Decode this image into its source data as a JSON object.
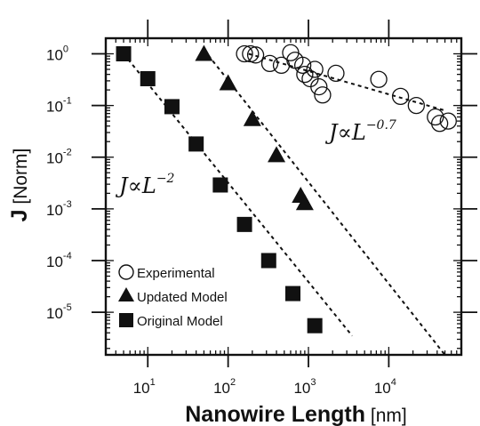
{
  "chart_data": {
    "type": "scatter",
    "x_scale": "log",
    "y_scale": "log",
    "xlim": [
      3,
      80000
    ],
    "ylim": [
      1.5e-06,
      2
    ],
    "xticks": [
      {
        "value": 10,
        "base": "10",
        "exp": "1"
      },
      {
        "value": 100,
        "base": "10",
        "exp": "2"
      },
      {
        "value": 1000,
        "base": "10",
        "exp": "3"
      },
      {
        "value": 10000,
        "base": "10",
        "exp": "4"
      }
    ],
    "yticks": [
      {
        "value": 1,
        "base": "10",
        "exp": "0"
      },
      {
        "value": 0.1,
        "base": "10",
        "exp": "-1"
      },
      {
        "value": 0.01,
        "base": "10",
        "exp": "-2"
      },
      {
        "value": 0.001,
        "base": "10",
        "exp": "-3"
      },
      {
        "value": 0.0001,
        "base": "10",
        "exp": "-4"
      },
      {
        "value": 1e-05,
        "base": "10",
        "exp": "-5"
      }
    ],
    "xlabel_bold": "Nanowire Length",
    "xlabel_unit": " [nm]",
    "ylabel_bold": "J",
    "ylabel_unit": " [Norm]",
    "legend_position": "bottom-left",
    "series": [
      {
        "name": "Experimental",
        "marker": "open-circle",
        "points": [
          [
            160,
            1.0
          ],
          [
            190,
            1.0
          ],
          [
            220,
            0.95
          ],
          [
            330,
            0.65
          ],
          [
            460,
            0.6
          ],
          [
            600,
            1.05
          ],
          [
            680,
            0.75
          ],
          [
            850,
            0.6
          ],
          [
            900,
            0.4
          ],
          [
            1050,
            0.33
          ],
          [
            1200,
            0.5
          ],
          [
            1350,
            0.23
          ],
          [
            1500,
            0.16
          ],
          [
            2200,
            0.42
          ],
          [
            7500,
            0.32
          ],
          [
            14000,
            0.15
          ],
          [
            22000,
            0.1
          ],
          [
            38000,
            0.06
          ],
          [
            43000,
            0.045
          ],
          [
            55000,
            0.05
          ]
        ],
        "fit": {
          "x": [
            180,
            50000
          ],
          "y": [
            1.0,
            0.08
          ]
        }
      },
      {
        "name": "Updated Model",
        "marker": "filled-triangle",
        "points": [
          [
            50,
            1.0
          ],
          [
            100,
            0.27
          ],
          [
            200,
            0.055
          ],
          [
            400,
            0.011
          ],
          [
            800,
            0.0018
          ],
          [
            900,
            0.0013
          ]
        ],
        "fit": {
          "x": [
            50,
            50000
          ],
          "y": [
            1.2,
            1.5e-06
          ]
        }
      },
      {
        "name": "Original Model",
        "marker": "filled-square",
        "points": [
          [
            5,
            1.0
          ],
          [
            10,
            0.33
          ],
          [
            20,
            0.095
          ],
          [
            40,
            0.018
          ],
          [
            80,
            0.0029
          ],
          [
            160,
            0.0005
          ],
          [
            320,
            0.0001
          ],
          [
            640,
            2.3e-05
          ],
          [
            1200,
            5.5e-06
          ]
        ],
        "fit": {
          "x": [
            5,
            3500
          ],
          "y": [
            1.0,
            3.5e-06
          ]
        }
      }
    ],
    "annotations": [
      {
        "base": "J∝L",
        "exp": "−2"
      },
      {
        "base": "J∝L",
        "exp": "−0.7"
      }
    ]
  }
}
